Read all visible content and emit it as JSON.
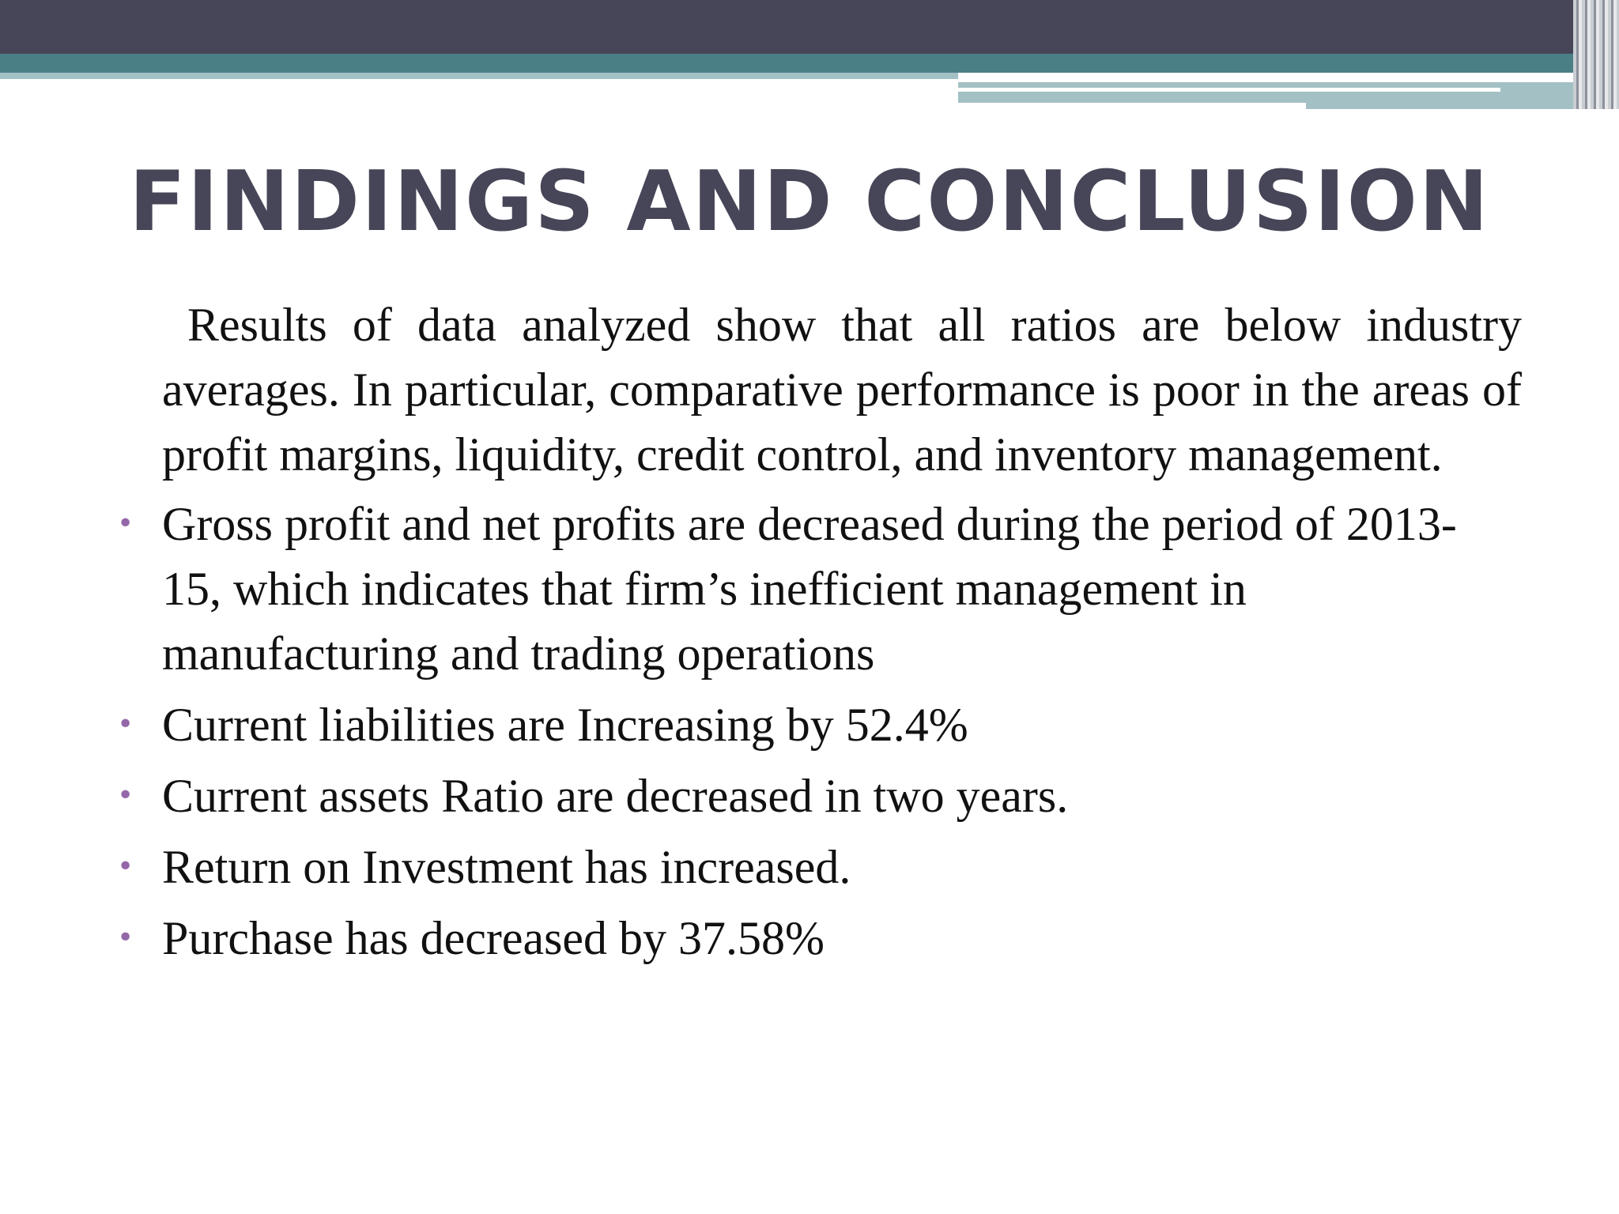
{
  "slide": {
    "title": "FINDINGS AND CONCLUSION",
    "intro": "Results of data analyzed show that all ratios are below industry averages. In particular, comparative performance is poor in the areas of profit margins, liquidity, credit control, and inventory management.",
    "bullet_glyph": "•",
    "bullets": [
      {
        "text": "Gross profit and net profits are decreased during the period of 2013-15, which indicates that firm’s inefficient management in manufacturing and trading operations"
      },
      {
        "text": "Current liabilities are Increasing by 52.4%"
      },
      {
        "text": "Current assets Ratio are decreased in two years."
      },
      {
        "text": "Return on Investment has increased."
      },
      {
        "text": "Purchase has decreased by 37.58%"
      }
    ]
  },
  "colors": {
    "header_band": "#474658",
    "teal_accent": "#4b7f86",
    "light_teal": "#a3c1c5",
    "title_text": "#474658",
    "bullet": "#9467a8"
  }
}
